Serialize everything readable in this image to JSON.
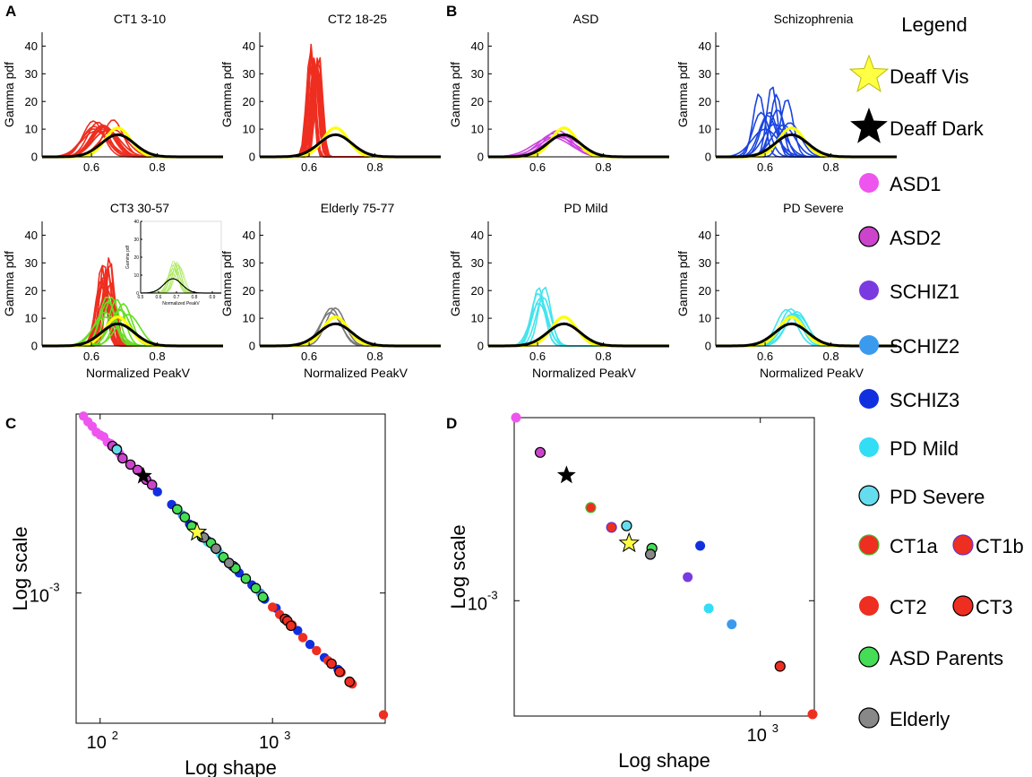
{
  "panel_labels": {
    "A": "A",
    "B": "B",
    "C": "C",
    "D": "D"
  },
  "colors": {
    "ct_red": "#ee2e20",
    "green": "#66dd22",
    "light_green": "#a8e85a",
    "gray": "#7a7a7a",
    "yellow": "#ffff00",
    "black": "#000000",
    "asd_magenta": "#cc44dd",
    "schiz_blue": "#1a44e0",
    "pd_cyan": "#44e4ee",
    "asd1": "#ee55ee",
    "asd2": "#cc44cc",
    "schiz1": "#7a3ae0",
    "schiz2": "#3a9aee",
    "schiz3": "#1030e0",
    "pd_mild": "#33ddf5",
    "pd_severe": "#66ddee",
    "asd_parents": "#44dd55",
    "elderly": "#888888"
  },
  "pdf_axes": {
    "ylabel": "Gamma pdf",
    "xlabel": "Normalized PeakV",
    "xticks": [
      "0.6",
      "0.8"
    ],
    "yticks": [
      "0",
      "10",
      "20",
      "30",
      "40"
    ]
  },
  "inset": {
    "ylabel": "Gamma pdf",
    "xlabel": "Normalized PeakV",
    "xticks": [
      "0.5",
      "0.6",
      "0.7",
      "0.8",
      "0.9"
    ],
    "yticks": [
      "0",
      "10",
      "20",
      "30",
      "40"
    ]
  },
  "chart_data": [
    {
      "type": "line",
      "panel": "A1",
      "title": "CT1 3-10",
      "xlim": [
        0.45,
        1.0
      ],
      "ylim": [
        0,
        45
      ],
      "series": [
        {
          "name": "CT1 subjects",
          "color": "#ee2e20",
          "count": 14,
          "mode_range": [
            0.6,
            0.67
          ],
          "peak_range": [
            9,
            13.5
          ]
        },
        {
          "name": "Deaff Vis",
          "color": "#ffff00",
          "mode": 0.68,
          "peak": 10.5
        },
        {
          "name": "Deaff Dark",
          "color": "#000000",
          "mode": 0.68,
          "peak": 8
        }
      ]
    },
    {
      "type": "line",
      "panel": "A2",
      "title": "CT2 18-25",
      "xlim": [
        0.45,
        1.0
      ],
      "ylim": [
        0,
        45
      ],
      "series": [
        {
          "name": "CT2 subjects",
          "color": "#ee2e20",
          "count": 16,
          "mode_range": [
            0.6,
            0.64
          ],
          "peak_range": [
            30,
            41
          ]
        },
        {
          "name": "Deaff Vis",
          "color": "#ffff00",
          "mode": 0.68,
          "peak": 10.5
        },
        {
          "name": "Deaff Dark",
          "color": "#000000",
          "mode": 0.68,
          "peak": 8
        }
      ]
    },
    {
      "type": "line",
      "panel": "A3",
      "title": "CT3 30-57",
      "xlim": [
        0.45,
        1.0
      ],
      "ylim": [
        0,
        45
      ],
      "series": [
        {
          "name": "CT3 subjects",
          "color": "#ee2e20",
          "count": 14,
          "mode_range": [
            0.62,
            0.66
          ],
          "peak_range": [
            18,
            33
          ]
        },
        {
          "name": "ASD parents",
          "color": "#66dd22",
          "count": 10,
          "mode_range": [
            0.64,
            0.72
          ],
          "peak_range": [
            9,
            18
          ]
        },
        {
          "name": "Deaff Vis",
          "color": "#ffff00",
          "mode": 0.68,
          "peak": 10.5
        },
        {
          "name": "Deaff Dark",
          "color": "#000000",
          "mode": 0.68,
          "peak": 8
        }
      ]
    },
    {
      "type": "line",
      "panel": "A3-inset",
      "title": "",
      "xlim": [
        0.5,
        0.95
      ],
      "ylim": [
        0,
        40
      ],
      "series": [
        {
          "name": "ASD parents",
          "color": "#a8e85a",
          "count": 10,
          "mode_range": [
            0.64,
            0.72
          ],
          "peak_range": [
            10,
            18
          ]
        },
        {
          "name": "Deaff Dark",
          "color": "#000000",
          "mode": 0.68,
          "peak": 8
        }
      ]
    },
    {
      "type": "line",
      "panel": "A4",
      "title": "Elderly 75-77",
      "xlim": [
        0.45,
        1.0
      ],
      "ylim": [
        0,
        45
      ],
      "series": [
        {
          "name": "Elderly subjects",
          "color": "#7a7a7a",
          "count": 3,
          "mode_range": [
            0.66,
            0.69
          ],
          "peak_range": [
            12,
            14
          ]
        },
        {
          "name": "Deaff Vis",
          "color": "#ffff00",
          "mode": 0.68,
          "peak": 10.5
        },
        {
          "name": "Deaff Dark",
          "color": "#000000",
          "mode": 0.68,
          "peak": 8
        }
      ]
    },
    {
      "type": "line",
      "panel": "B1",
      "title": "ASD",
      "xlim": [
        0.45,
        1.0
      ],
      "ylim": [
        0,
        45
      ],
      "series": [
        {
          "name": "ASD subjects",
          "color": "#cc44dd",
          "count": 5,
          "mode_range": [
            0.64,
            0.68
          ],
          "peak_range": [
            7,
            10
          ]
        },
        {
          "name": "Deaff Vis",
          "color": "#ffff00",
          "mode": 0.68,
          "peak": 10.5
        },
        {
          "name": "Deaff Dark",
          "color": "#000000",
          "mode": 0.68,
          "peak": 8
        }
      ]
    },
    {
      "type": "line",
      "panel": "B2",
      "title": "Schizophrenia",
      "xlim": [
        0.45,
        1.0
      ],
      "ylim": [
        0,
        45
      ],
      "series": [
        {
          "name": "Schizophrenia subjects",
          "color": "#1a44e0",
          "count": 12,
          "mode_range": [
            0.58,
            0.7
          ],
          "peak_range": [
            10,
            27
          ]
        },
        {
          "name": "Deaff Vis",
          "color": "#ffff00",
          "mode": 0.68,
          "peak": 10.5
        },
        {
          "name": "Deaff Dark",
          "color": "#000000",
          "mode": 0.68,
          "peak": 8
        }
      ]
    },
    {
      "type": "line",
      "panel": "B3",
      "title": "PD Mild",
      "xlim": [
        0.45,
        1.0
      ],
      "ylim": [
        0,
        45
      ],
      "series": [
        {
          "name": "PD mild subjects",
          "color": "#44e4ee",
          "count": 6,
          "mode_range": [
            0.6,
            0.64
          ],
          "peak_range": [
            15,
            22
          ]
        },
        {
          "name": "Deaff Vis",
          "color": "#ffff00",
          "mode": 0.68,
          "peak": 10.5
        },
        {
          "name": "Deaff Dark",
          "color": "#000000",
          "mode": 0.68,
          "peak": 8
        }
      ]
    },
    {
      "type": "line",
      "panel": "B4",
      "title": "PD Severe",
      "xlim": [
        0.45,
        1.0
      ],
      "ylim": [
        0,
        45
      ],
      "series": [
        {
          "name": "PD severe subjects",
          "color": "#44e4ee",
          "count": 6,
          "mode_range": [
            0.66,
            0.7
          ],
          "peak_range": [
            10,
            13.5
          ]
        },
        {
          "name": "Deaff Vis",
          "color": "#ffff00",
          "mode": 0.68,
          "peak": 10.5
        },
        {
          "name": "Deaff Dark",
          "color": "#000000",
          "mode": 0.68,
          "peak": 8
        }
      ]
    },
    {
      "type": "scatter",
      "panel": "C",
      "xscale": "log",
      "yscale": "log",
      "xlabel": "Log shape",
      "ylabel": "Log scale",
      "xlim": [
        78,
        4400
      ],
      "ylim": [
        0.000186,
        0.01127
      ],
      "xticks": [
        {
          "v": 100,
          "label": "10",
          "exp": "2"
        },
        {
          "v": 1000,
          "label": "10",
          "exp": "3"
        }
      ],
      "yticks": [
        {
          "v": 0.001,
          "label": "10",
          "exp": "-3"
        }
      ],
      "series": [
        {
          "name": "ASD1",
          "fill": "#ee55ee",
          "edge": "none",
          "x": [
            80,
            85,
            90,
            95,
            100,
            105,
            110,
            115,
            120,
            130
          ]
        },
        {
          "name": "ASD2",
          "fill": "#cc44cc",
          "edge": "#000000",
          "x": [
            118,
            125,
            135,
            150,
            165,
            185,
            200
          ]
        },
        {
          "name": "SCHIZ3",
          "fill": "#1030e0",
          "edge": "none",
          "x": [
            215,
            260,
            330,
            420,
            520,
            640,
            760,
            900,
            1050,
            1200,
            1400,
            1650,
            2000,
            2400
          ]
        },
        {
          "name": "SCHIZ2",
          "fill": "#3a9aee",
          "edge": "none",
          "x": [
            300,
            380,
            480,
            560,
            700,
            850
          ]
        },
        {
          "name": "SCHIZ1",
          "fill": "#7a3ae0",
          "edge": "none",
          "x": [
            600,
            800
          ]
        },
        {
          "name": "PD Mild",
          "fill": "#33ddf5",
          "edge": "none",
          "x": [
            420,
            460,
            500,
            560
          ]
        },
        {
          "name": "PD Severe",
          "fill": "#66ddee",
          "edge": "#000000",
          "x": [
            125,
            345,
            470,
            590
          ]
        },
        {
          "name": "ASD Parents",
          "fill": "#44dd55",
          "edge": "#000000",
          "x": [
            280,
            310,
            340,
            390,
            440,
            520,
            610,
            700,
            800,
            880
          ]
        },
        {
          "name": "Elderly",
          "fill": "#888888",
          "edge": "#000000",
          "x": [
            400,
            470,
            560
          ]
        },
        {
          "name": "CT2",
          "fill": "#ee2e20",
          "edge": "none",
          "x": [
            1000,
            1100,
            1300,
            1500,
            1800,
            2100,
            2500,
            2900,
            4400
          ]
        },
        {
          "name": "CT3",
          "fill": "#ee2e20",
          "edge": "#000000",
          "x": [
            1180,
            1220,
            1280,
            2200,
            2450,
            2800
          ]
        },
        {
          "name": "Deaff Dark",
          "fill": "#000000",
          "edge": "none",
          "marker": "star",
          "x": [
            178
          ]
        },
        {
          "name": "Deaff Vis",
          "fill": "#ffff44",
          "edge": "#000000",
          "marker": "star",
          "x": [
            365
          ]
        }
      ]
    },
    {
      "type": "scatter",
      "panel": "D",
      "xscale": "log",
      "yscale": "log",
      "xlabel": "Log shape",
      "ylabel": "Log scale",
      "xlim": [
        150,
        1500
      ],
      "ylim": [
        0.000342,
        0.00564
      ],
      "xticks": [
        {
          "v": 1000,
          "label": "10",
          "exp": "3"
        }
      ],
      "yticks": [
        {
          "v": 0.001,
          "label": "10",
          "exp": "-3"
        }
      ],
      "points": [
        {
          "name": "ASD1",
          "x": 150,
          "y": 0.00564,
          "fill": "#ee55ee",
          "edge": "none"
        },
        {
          "name": "ASD2",
          "x": 181,
          "y": 0.00406,
          "fill": "#cc44cc",
          "edge": "#000000"
        },
        {
          "name": "Deaff Dark",
          "x": 222,
          "y": 0.00327,
          "fill": "#000000",
          "edge": "none",
          "marker": "star"
        },
        {
          "name": "CT1a",
          "x": 268,
          "y": 0.00241,
          "fill": "#ee2e20",
          "edge": "#44bb33"
        },
        {
          "name": "CT1b",
          "x": 315,
          "y": 0.002,
          "fill": "#ee2e20",
          "edge": "#6633cc"
        },
        {
          "name": "PD Severe",
          "x": 354,
          "y": 0.00203,
          "fill": "#66ddee",
          "edge": "#000000"
        },
        {
          "name": "Deaff Vis",
          "x": 361,
          "y": 0.00172,
          "fill": "#ffff44",
          "edge": "#000000",
          "marker": "star"
        },
        {
          "name": "ASD Parents",
          "x": 431,
          "y": 0.00164,
          "fill": "#44dd55",
          "edge": "#000000"
        },
        {
          "name": "Elderly",
          "x": 426,
          "y": 0.00155,
          "fill": "#888888",
          "edge": "#000000"
        },
        {
          "name": "SCHIZ3",
          "x": 627,
          "y": 0.00168,
          "fill": "#1030e0",
          "edge": "none"
        },
        {
          "name": "SCHIZ1",
          "x": 569,
          "y": 0.00125,
          "fill": "#7a3ae0",
          "edge": "none"
        },
        {
          "name": "PD Mild",
          "x": 670,
          "y": 0.00093,
          "fill": "#33ddf5",
          "edge": "none"
        },
        {
          "name": "SCHIZ2",
          "x": 801,
          "y": 0.0008,
          "fill": "#3a9aee",
          "edge": "none"
        },
        {
          "name": "CT3",
          "x": 1166,
          "y": 0.000538,
          "fill": "#ee2e20",
          "edge": "#000000"
        },
        {
          "name": "CT2",
          "x": 1500,
          "y": 0.000342,
          "fill": "#ee2e20",
          "edge": "none"
        }
      ]
    }
  ],
  "legend": {
    "title": "Legend",
    "items": [
      {
        "label": "Deaff Vis",
        "marker": "star",
        "fill": "#ffff44",
        "edge": "#bbbb00"
      },
      {
        "label": "Deaff Dark",
        "marker": "star",
        "fill": "#000000",
        "edge": "none"
      },
      {
        "label": "ASD1",
        "marker": "circle",
        "fill": "#ee55ee",
        "edge": "none"
      },
      {
        "label": "ASD2",
        "marker": "circle",
        "fill": "#cc44cc",
        "edge": "#000000"
      },
      {
        "label": "SCHIZ1",
        "marker": "circle",
        "fill": "#7a3ae0",
        "edge": "none"
      },
      {
        "label": "SCHIZ2",
        "marker": "circle",
        "fill": "#3a9aee",
        "edge": "none"
      },
      {
        "label": "SCHIZ3",
        "marker": "circle",
        "fill": "#1030e0",
        "edge": "none"
      },
      {
        "label": "PD Mild",
        "marker": "circle",
        "fill": "#33ddf5",
        "edge": "none"
      },
      {
        "label": "PD Severe",
        "marker": "circle",
        "fill": "#66ddee",
        "edge": "#000000"
      },
      {
        "label": "CT1a",
        "label2": "CT1b",
        "marker": "circle",
        "fill": "#ee2e20",
        "edge": "#44bb33",
        "fill2": "#ee2e20",
        "edge2": "#6633cc"
      },
      {
        "label": "CT2",
        "label2": "CT3",
        "marker": "circle",
        "fill": "#ee2e20",
        "edge": "none",
        "fill2": "#ee2e20",
        "edge2": "#000000"
      },
      {
        "label": "ASD Parents",
        "marker": "circle",
        "fill": "#44dd55",
        "edge": "#000000"
      },
      {
        "label": "Elderly",
        "marker": "circle",
        "fill": "#888888",
        "edge": "#000000"
      }
    ]
  }
}
